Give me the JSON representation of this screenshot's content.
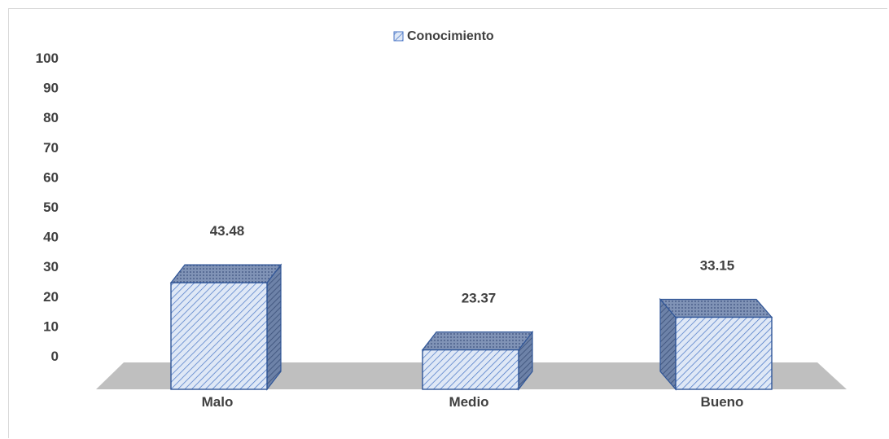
{
  "chart_data": {
    "type": "bar",
    "categories": [
      "Malo",
      "Medio",
      "Bueno"
    ],
    "series": [
      {
        "name": "Conocimiento",
        "values": [
          43.48,
          23.37,
          33.15
        ]
      }
    ],
    "data_labels": [
      "43.48",
      "23.37",
      "33.15"
    ],
    "yticks": [
      "0",
      "10",
      "20",
      "30",
      "40",
      "50",
      "60",
      "70",
      "80",
      "90",
      "100"
    ],
    "ylim": [
      0,
      100
    ],
    "legend_position": "top",
    "grid": false,
    "style": "3d-hatched",
    "colors": {
      "front_fill": "#dfe8f6",
      "hatch": "#4472c4",
      "side_dark": "#4a5f86",
      "floor": "#bfbfbf",
      "label_text": "#404040"
    }
  }
}
